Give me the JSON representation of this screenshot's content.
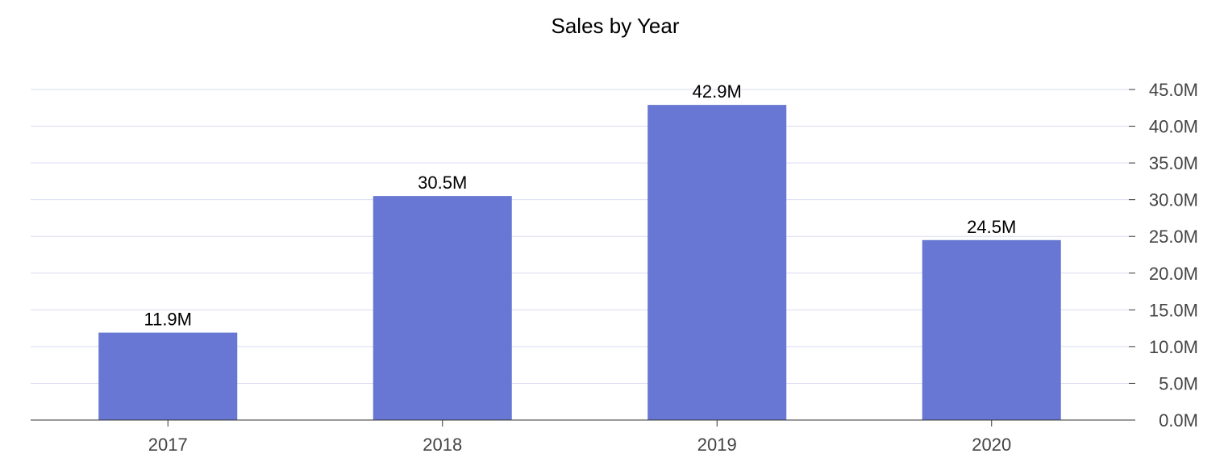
{
  "chart_data": {
    "type": "bar",
    "title": "Sales by Year",
    "xlabel": "",
    "ylabel": "",
    "categories": [
      "2017",
      "2018",
      "2019",
      "2020"
    ],
    "values": [
      11.9,
      30.5,
      42.9,
      24.5
    ],
    "value_labels": [
      "11.9M",
      "30.5M",
      "42.9M",
      "24.5M"
    ],
    "ylim": [
      0,
      45
    ],
    "y_ticks": [
      0,
      5,
      10,
      15,
      20,
      25,
      30,
      35,
      40,
      45
    ],
    "y_tick_labels": [
      "0.0M",
      "5.0M",
      "10.0M",
      "15.0M",
      "20.0M",
      "25.0M",
      "30.0M",
      "35.0M",
      "40.0M",
      "45.0M"
    ],
    "y_axis_side": "right",
    "grid": true,
    "legend": "none"
  },
  "colors": {
    "bar": "#6777d3",
    "grid": "#d9dcf2",
    "axis": "#333333"
  }
}
